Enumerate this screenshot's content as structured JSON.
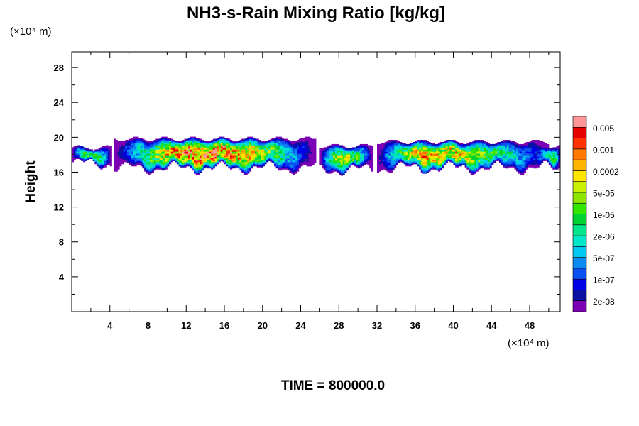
{
  "chart_data": {
    "type": "heatmap",
    "title": "NH3-s-Rain Mixing Ratio [kg/kg]",
    "ylabel": "Height",
    "xlabel": "",
    "x_unit_label": "(×10⁴ m)",
    "y_unit_label": "(×10⁴ m)",
    "footer": "TIME = 800000.0",
    "xlim": [
      0,
      51.2
    ],
    "ylim": [
      0,
      29.8
    ],
    "x_ticks": [
      4,
      8,
      12,
      16,
      20,
      24,
      28,
      32,
      36,
      40,
      44,
      48
    ],
    "x_tick_labels": [
      "4",
      "8",
      "12",
      "16",
      "20",
      "24",
      "28",
      "32",
      "36",
      "40",
      "44",
      "48"
    ],
    "y_ticks": [
      4,
      8,
      12,
      16,
      20,
      24,
      28
    ],
    "y_tick_labels": [
      "4",
      "8",
      "12",
      "16",
      "20",
      "24",
      "28"
    ],
    "grid": false,
    "colorbar": {
      "position": "right",
      "labels": [
        "0.005",
        "0.001",
        "0.0002",
        "5e-05",
        "1e-05",
        "2e-06",
        "5e-07",
        "1e-07",
        "2e-08"
      ],
      "levels": [
        2e-08,
        5e-08,
        1e-07,
        2e-07,
        5e-07,
        1e-06,
        2e-06,
        5e-06,
        1e-05,
        2e-05,
        5e-05,
        0.0001,
        0.0002,
        0.0005,
        0.001,
        0.002,
        0.005,
        0.01
      ],
      "colors": [
        "#7c00b4",
        "#0a10a0",
        "#0000e6",
        "#0a50f0",
        "#0a8cf0",
        "#00c8f0",
        "#00e6c8",
        "#00e68c",
        "#00d232",
        "#32e600",
        "#8ce600",
        "#c8f000",
        "#ffe600",
        "#ffb400",
        "#ff7800",
        "#ff3200",
        "#e60000",
        "#ff9696"
      ]
    },
    "clouds": [
      {
        "x0": 0.0,
        "x1": 4.2,
        "ybase": 17.0,
        "ytop": 18.8,
        "peak": 3e-05,
        "cx": 2.0
      },
      {
        "x0": 4.5,
        "x1": 25.5,
        "ybase": 16.5,
        "ytop": 19.8,
        "peak": 0.002,
        "cx": 14.0
      },
      {
        "x0": 26.0,
        "x1": 31.5,
        "ybase": 16.3,
        "ytop": 19.0,
        "peak": 0.0001,
        "cx": 28.5
      },
      {
        "x0": 32.0,
        "x1": 50.0,
        "ybase": 16.5,
        "ytop": 19.5,
        "peak": 0.001,
        "cx": 36.0
      },
      {
        "x0": 48.5,
        "x1": 51.2,
        "ybase": 16.5,
        "ytop": 19.0,
        "peak": 5e-05,
        "cx": 51.0
      }
    ]
  }
}
